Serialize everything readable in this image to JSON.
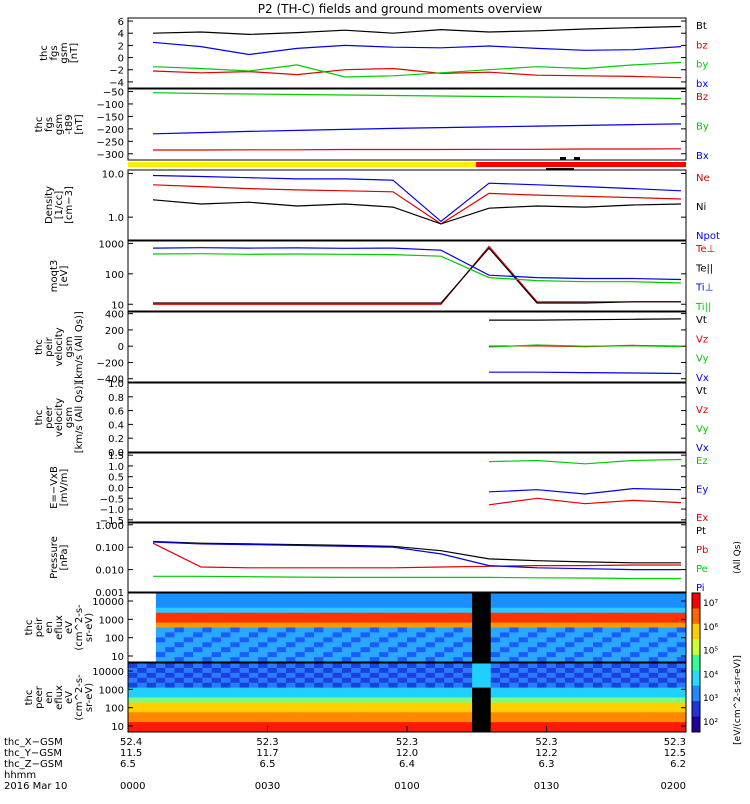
{
  "title": "P2 (TH-C) fields and ground moments overview",
  "colors": {
    "black": "#000000",
    "red": "#e00000",
    "green": "#00cc00",
    "blue": "#0000ee",
    "yellow": "#ffee00",
    "bar_red": "#ff0000"
  },
  "chart_data": [
    {
      "type": "line",
      "ylabel": [
        "thc",
        "fgs",
        "gsm",
        "[nT]"
      ],
      "yticks": [
        "6",
        "4",
        "2",
        "0",
        "−2",
        "−4"
      ],
      "ylim": [
        -5,
        6.5
      ],
      "series": [
        {
          "name": "Bt",
          "color": "#000000",
          "values": [
            4,
            4.2,
            3.8,
            4.1,
            4.5,
            4,
            4.6,
            4.2,
            4.4,
            4.7,
            4.9,
            5.1
          ]
        },
        {
          "name": "bz",
          "color": "#e00000",
          "values": [
            -2.2,
            -2.5,
            -2.3,
            -2.8,
            -2,
            -1.8,
            -2.6,
            -2.4,
            -2.9,
            -3,
            -3.1,
            -3.3
          ]
        },
        {
          "name": "by",
          "color": "#00cc00",
          "values": [
            -1.5,
            -1.8,
            -2.2,
            -1.2,
            -3.2,
            -3.0,
            -2.5,
            -2.0,
            -1.5,
            -1.8,
            -1.2,
            -0.8
          ]
        },
        {
          "name": "bx",
          "color": "#0000ee",
          "values": [
            2.5,
            1.8,
            0.5,
            1.5,
            2.0,
            1.7,
            1.6,
            1.9,
            1.5,
            1.2,
            1.3,
            1.8
          ]
        }
      ]
    },
    {
      "type": "line",
      "ylabel": [
        "thc",
        "fgs",
        "gsm",
        "-t89",
        "[nT]"
      ],
      "yticks": [
        "−50",
        "−100",
        "−150",
        "−200",
        "−250",
        "−300"
      ],
      "ylim": [
        -325,
        -40
      ],
      "series": [
        {
          "name": "Bz",
          "color": "#e00000",
          "values": [
            -285,
            -285,
            -284,
            -284,
            -283,
            -283,
            -283,
            -282,
            -282,
            -281,
            -281,
            -280
          ]
        },
        {
          "name": "By",
          "color": "#00cc00",
          "values": [
            -55,
            -58,
            -60,
            -62,
            -64,
            -66,
            -68,
            -70,
            -72,
            -74,
            -76,
            -78
          ]
        },
        {
          "name": "Bx",
          "color": "#0000ee",
          "values": [
            -220,
            -215,
            -210,
            -206,
            -202,
            -198,
            -195,
            -192,
            -189,
            -186,
            -183,
            -180
          ]
        }
      ]
    },
    {
      "type": "line",
      "ylabel": [
        "Density",
        "[1/cc]",
        "[cm−3]"
      ],
      "yticks": [
        "10.0",
        "1.0"
      ],
      "ylim": [
        0.3,
        12
      ],
      "series": [
        {
          "name": "Ne",
          "color": "#e00000",
          "values": [
            5.5,
            5,
            4.5,
            4.2,
            4,
            3.8,
            0.7,
            3.5,
            3.2,
            3,
            2.8,
            2.6
          ]
        },
        {
          "name": "Ni",
          "color": "#000000",
          "values": [
            2.5,
            2.0,
            2.2,
            1.8,
            2.0,
            1.7,
            0.7,
            1.6,
            1.8,
            1.7,
            1.9,
            2.0
          ]
        },
        {
          "name": "Npot",
          "color": "#0000ee",
          "values": [
            9,
            8.5,
            8,
            7.5,
            7.5,
            7,
            0.8,
            6,
            5.5,
            5,
            4.5,
            4
          ]
        }
      ]
    },
    {
      "type": "line",
      "ylabel": [
        "moqt3",
        "[eV]"
      ],
      "yticks": [
        "1000",
        "100",
        "10"
      ],
      "ylim": [
        6,
        1200
      ],
      "series": [
        {
          "name": "Te⊥",
          "color": "#e00000",
          "values": [
            10,
            10,
            10,
            10,
            10,
            10,
            10,
            800,
            12,
            12,
            12,
            12
          ]
        },
        {
          "name": "Te||",
          "color": "#000000",
          "values": [
            11,
            11,
            11,
            11,
            11,
            11,
            11,
            700,
            11,
            11,
            12,
            12
          ]
        },
        {
          "name": "Ti⊥",
          "color": "#0000ee",
          "values": [
            700,
            720,
            700,
            710,
            690,
            700,
            600,
            90,
            75,
            70,
            70,
            65
          ]
        },
        {
          "name": "Ti||",
          "color": "#00cc00",
          "values": [
            450,
            460,
            440,
            450,
            440,
            430,
            380,
            75,
            60,
            55,
            55,
            50
          ]
        }
      ]
    },
    {
      "type": "line",
      "ylabel": [
        "thc",
        "peir",
        "velocity",
        "gsm",
        "[km/s (All Qs)]"
      ],
      "yticks": [
        "400",
        "200",
        "0",
        "−200",
        "−400"
      ],
      "ylim": [
        -440,
        420
      ],
      "series": [
        {
          "name": "Vt",
          "color": "#000000",
          "values": [
            null,
            null,
            null,
            null,
            null,
            null,
            null,
            320,
            320,
            325,
            330,
            335
          ]
        },
        {
          "name": "Vz",
          "color": "#e00000",
          "values": [
            null,
            null,
            null,
            null,
            null,
            null,
            null,
            0,
            5,
            -5,
            10,
            0
          ]
        },
        {
          "name": "Vy",
          "color": "#00cc00",
          "values": [
            null,
            null,
            null,
            null,
            null,
            null,
            null,
            -10,
            15,
            0,
            5,
            -5
          ]
        },
        {
          "name": "Vx",
          "color": "#0000ee",
          "values": [
            null,
            null,
            null,
            null,
            null,
            null,
            null,
            -320,
            -320,
            -325,
            -330,
            -335
          ]
        }
      ]
    },
    {
      "type": "line",
      "ylabel": [
        "thc",
        "peer",
        "velocity",
        "gsm",
        "[km/s (All Qs)]"
      ],
      "yticks": [
        "1.0",
        "0.8",
        "0.6",
        "0.4",
        "0.2",
        "0.0"
      ],
      "ylim": [
        0,
        1
      ],
      "series": [
        {
          "name": "Vt",
          "color": "#000000",
          "values": []
        },
        {
          "name": "Vz",
          "color": "#e00000",
          "values": []
        },
        {
          "name": "Vy",
          "color": "#00cc00",
          "values": []
        },
        {
          "name": "Vx",
          "color": "#0000ee",
          "values": []
        }
      ]
    },
    {
      "type": "line",
      "ylabel": [
        "E=−VxB",
        "[mV/m]"
      ],
      "yticks": [
        "1.5",
        "1.0",
        "0.5",
        "0.0",
        "−0.5",
        "−1.0",
        "−1.5"
      ],
      "ylim": [
        -1.6,
        1.6
      ],
      "series": [
        {
          "name": "Ez",
          "color": "#00cc00",
          "values": [
            null,
            null,
            null,
            null,
            null,
            null,
            null,
            1.2,
            1.25,
            1.1,
            1.25,
            1.3
          ]
        },
        {
          "name": "Ey",
          "color": "#0000ee",
          "values": [
            null,
            null,
            null,
            null,
            null,
            null,
            null,
            -0.2,
            -0.1,
            -0.3,
            -0.05,
            -0.1
          ]
        },
        {
          "name": "Ex",
          "color": "#e00000",
          "values": [
            null,
            null,
            null,
            null,
            null,
            null,
            null,
            -0.8,
            -0.5,
            -0.75,
            -0.6,
            -0.7
          ]
        }
      ]
    },
    {
      "type": "line",
      "ylabel": [
        "Pressure",
        "[nPa]"
      ],
      "yticks": [
        "1.000",
        "0.100",
        "0.010",
        "0.001"
      ],
      "ylim": [
        0.001,
        1.2
      ],
      "ylabel_right": "(All Qs)",
      "series": [
        {
          "name": "Pt",
          "color": "#000000",
          "values": [
            0.18,
            0.15,
            0.14,
            0.13,
            0.12,
            0.11,
            0.07,
            0.03,
            0.025,
            0.022,
            0.02,
            0.02
          ]
        },
        {
          "name": "Pb",
          "color": "#e00000",
          "values": [
            0.15,
            0.013,
            0.012,
            0.012,
            0.012,
            0.012,
            0.013,
            0.014,
            0.015,
            0.015,
            0.016,
            0.016
          ]
        },
        {
          "name": "Pe",
          "color": "#00cc00",
          "values": [
            0.005,
            0.005,
            0.0048,
            0.0046,
            0.0045,
            0.0045,
            0.0045,
            0.0045,
            0.0043,
            0.0042,
            0.004,
            0.004
          ]
        },
        {
          "name": "Pi",
          "color": "#0000ee",
          "values": [
            0.17,
            0.14,
            0.13,
            0.12,
            0.11,
            0.1,
            0.05,
            0.015,
            0.012,
            0.011,
            0.01,
            0.01
          ]
        }
      ]
    },
    {
      "type": "heatmap",
      "ylabel": [
        "thc",
        "peir",
        "en",
        "eflux",
        "eV",
        "(cm^2-s-",
        "sr-eV)"
      ],
      "yticks": [
        "10000",
        "1000",
        "100",
        "10"
      ]
    },
    {
      "type": "heatmap",
      "ylabel": [
        "thc",
        "peer",
        "en",
        "eflux",
        "eV",
        "(cm^2-s-",
        "sr-eV)"
      ],
      "yticks": [
        "10000",
        "1000",
        "100",
        "10"
      ]
    }
  ],
  "colorbar": {
    "ticks": [
      "10⁷",
      "10⁶",
      "10⁵",
      "10⁴",
      "10³",
      "10²"
    ],
    "label": "[eV/(cm^2-s-sr-eV)]"
  },
  "bottom_axis": {
    "row_labels": [
      "thc_X−GSM",
      "thc_Y−GSM",
      "thc_Z−GSM",
      "hhmm",
      "2016 Mar 10"
    ],
    "columns": [
      {
        "x": "52.4",
        "y": "11.5",
        "z": "6.5",
        "hhmm": "0000"
      },
      {
        "x": "52.3",
        "y": "11.7",
        "z": "6.5",
        "hhmm": "0030"
      },
      {
        "x": "52.3",
        "y": "12.0",
        "z": "6.4",
        "hhmm": "0100"
      },
      {
        "x": "52.3",
        "y": "12.2",
        "z": "6.3",
        "hhmm": "0130"
      },
      {
        "x": "52.3",
        "y": "12.5",
        "z": "6.2",
        "hhmm": "0200"
      }
    ]
  }
}
